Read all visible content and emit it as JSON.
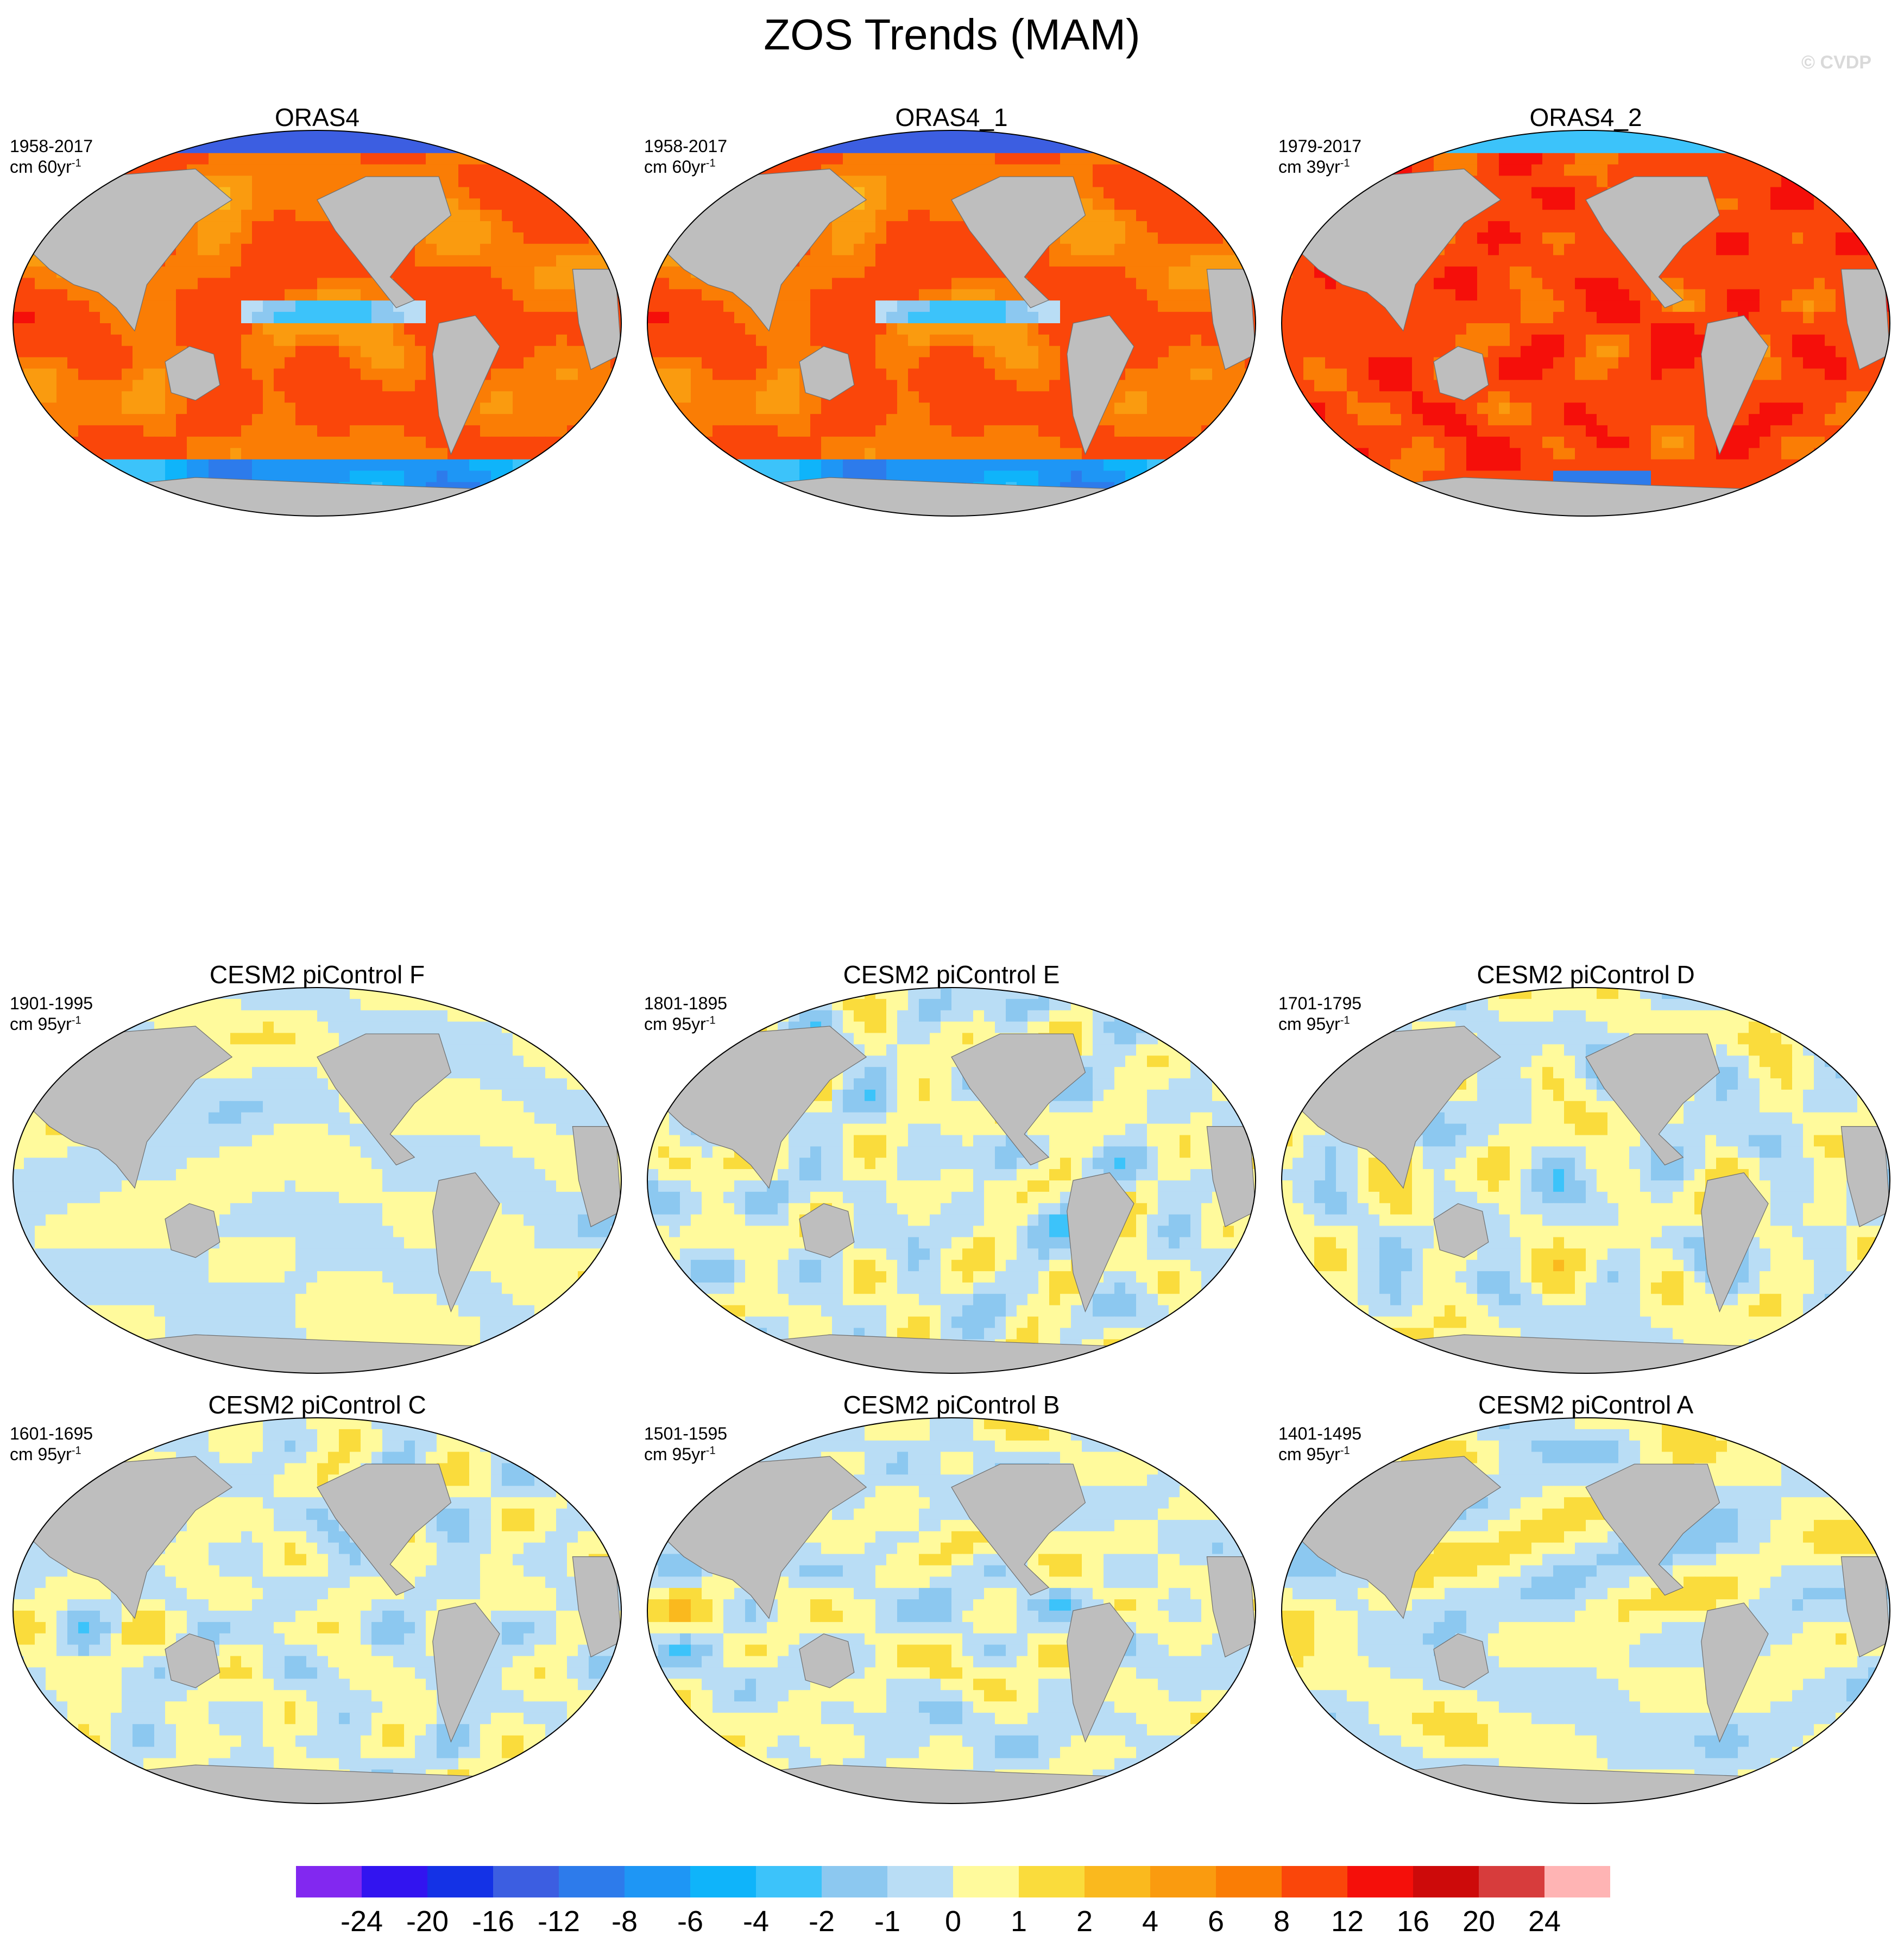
{
  "title": "ZOS Trends (MAM)",
  "watermark": "© CVDP",
  "panels": [
    {
      "title": "ORAS4",
      "period": "1958-2017",
      "units_prefix": "cm 60yr",
      "units_sup": "-1",
      "regime": "reanalysis-strong",
      "seed": 11
    },
    {
      "title": "ORAS4_1",
      "period": "1958-2017",
      "units_prefix": "cm 60yr",
      "units_sup": "-1",
      "regime": "reanalysis-strong",
      "seed": 11
    },
    {
      "title": "ORAS4_2",
      "period": "1979-2017",
      "units_prefix": "cm 39yr",
      "units_sup": "-1",
      "regime": "reanalysis-strongest",
      "seed": 23
    },
    {
      "title": "CESM2 piControl F",
      "period": "1901-1995",
      "units_prefix": "cm 95yr",
      "units_sup": "-1",
      "regime": "control",
      "seed": 31
    },
    {
      "title": "CESM2 piControl E",
      "period": "1801-1895",
      "units_prefix": "cm 95yr",
      "units_sup": "-1",
      "regime": "control",
      "seed": 37
    },
    {
      "title": "CESM2 piControl D",
      "period": "1701-1795",
      "units_prefix": "cm 95yr",
      "units_sup": "-1",
      "regime": "control",
      "seed": 41
    },
    {
      "title": "CESM2 piControl C",
      "period": "1601-1695",
      "units_prefix": "cm 95yr",
      "units_sup": "-1",
      "regime": "control",
      "seed": 43
    },
    {
      "title": "CESM2 piControl B",
      "period": "1501-1595",
      "units_prefix": "cm 95yr",
      "units_sup": "-1",
      "regime": "control",
      "seed": 47
    },
    {
      "title": "CESM2 piControl A",
      "period": "1401-1495",
      "units_prefix": "cm 95yr",
      "units_sup": "-1",
      "regime": "control",
      "seed": 53
    }
  ],
  "colorbar": {
    "labels": [
      "-24",
      "-20",
      "-16",
      "-12",
      "-8",
      "-6",
      "-4",
      "-2",
      "-1",
      "0",
      "1",
      "2",
      "4",
      "6",
      "8",
      "12",
      "16",
      "20",
      "24"
    ],
    "colors": [
      "#8228f0",
      "#3214f0",
      "#1432e6",
      "#3c5ee1",
      "#2d7beb",
      "#1e96f5",
      "#0fb4fa",
      "#3cc3fa",
      "#8cc8f0",
      "#b9ddf5",
      "#fffa9c",
      "#fadc3c",
      "#fab91e",
      "#fa9b0f",
      "#fa7d05",
      "#fa460a",
      "#f50f0a",
      "#cd0a0a",
      "#d73c3c",
      "#ffb4b4"
    ]
  },
  "chart_data": {
    "type": "heatmap",
    "variable": "ZOS",
    "season": "MAM",
    "units": "cm",
    "levels": [
      -24,
      -20,
      -16,
      -12,
      -8,
      -6,
      -4,
      -2,
      -1,
      0,
      1,
      2,
      4,
      6,
      8,
      12,
      16,
      20,
      24
    ],
    "land_color": "#bebebe",
    "projection": "Robinson-like global, centered on Pacific",
    "panels": [
      "ORAS4",
      "ORAS4_1",
      "ORAS4_2",
      "CESM2 piControl F",
      "CESM2 piControl E",
      "CESM2 piControl D",
      "CESM2 piControl C",
      "CESM2 piControl B",
      "CESM2 piControl A"
    ]
  }
}
